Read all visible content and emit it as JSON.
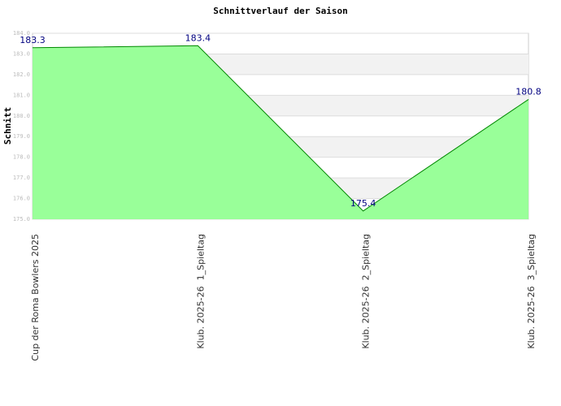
{
  "chart_data": {
    "type": "area",
    "title": "Schnittverlauf der Saison",
    "y_label": "Schnitt",
    "categories": [
      "Cup der Roma Bowlers 2025",
      "Klub. 2025-26  1_Spieltag",
      "Klub. 2025-26  2_Spieltag",
      "Klub. 2025-26  3_Spieltag"
    ],
    "values": [
      183.3,
      183.4,
      175.4,
      180.8
    ],
    "color": "#99ff99",
    "line_color": "#008800",
    "label_color": "#000080",
    "ylim": [
      175,
      184
    ],
    "yticks": [
      {
        "value": 175,
        "label": "175.0"
      },
      {
        "value": 176,
        "label": "176.0"
      },
      {
        "value": 177,
        "label": "177.0"
      },
      {
        "value": 178,
        "label": "178.0"
      },
      {
        "value": 179,
        "label": "179.0"
      },
      {
        "value": 180,
        "label": "180.0"
      },
      {
        "value": 181,
        "label": "181.0"
      },
      {
        "value": 182,
        "label": "182.0"
      },
      {
        "value": 183,
        "label": "183.0"
      },
      {
        "value": 184,
        "label": "184.0"
      }
    ],
    "grid": true,
    "band_color": "#f2f2f2"
  }
}
